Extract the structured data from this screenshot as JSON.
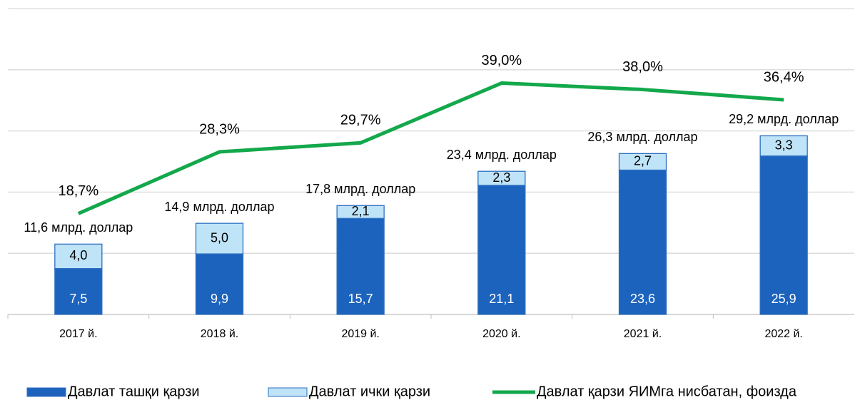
{
  "chart_data": {
    "type": "bar",
    "stacked": true,
    "categories": [
      "2017 й.",
      "2018 й.",
      "2019 й.",
      "2020 й.",
      "2021 й.",
      "2022 й."
    ],
    "series": [
      {
        "name": "Давлат ташқи қарзи",
        "type": "bar",
        "color": "#1c63be",
        "values": [
          7.5,
          9.9,
          15.7,
          21.1,
          23.6,
          25.9
        ],
        "value_labels": [
          "7,5",
          "9,9",
          "15,7",
          "21,1",
          "23,6",
          "25,9"
        ]
      },
      {
        "name": "Давлат ички қарзи",
        "type": "bar",
        "color": "#bfe4f8",
        "values": [
          4.0,
          5.0,
          2.1,
          2.3,
          2.7,
          3.3
        ],
        "value_labels": [
          "4,0",
          "5,0",
          "2,1",
          "2,3",
          "2,7",
          "3,3"
        ]
      },
      {
        "name": "Давлат қарзи ЯИМга нисбатан, фоизда",
        "type": "line",
        "axis": "y2",
        "color": "#13a84b",
        "values": [
          18.7,
          28.3,
          29.7,
          39.0,
          38.0,
          36.4
        ],
        "value_labels": [
          "18,7%",
          "28,3%",
          "29,7%",
          "39,0%",
          "38,0%",
          "36,4%"
        ]
      }
    ],
    "total_labels": [
      "11,6 млрд. доллар",
      "14,9 млрд. доллар",
      "17,8 млрд. доллар",
      "23,4 млрд. доллар",
      "26,3 млрд. доллар",
      "29,2 млрд. доллар"
    ],
    "ylim": [
      0,
      50
    ],
    "yticks": [
      0,
      10,
      20,
      30,
      40,
      50
    ],
    "y2lim": [
      3,
      50.6
    ],
    "grid": true,
    "legend": "bottom"
  }
}
